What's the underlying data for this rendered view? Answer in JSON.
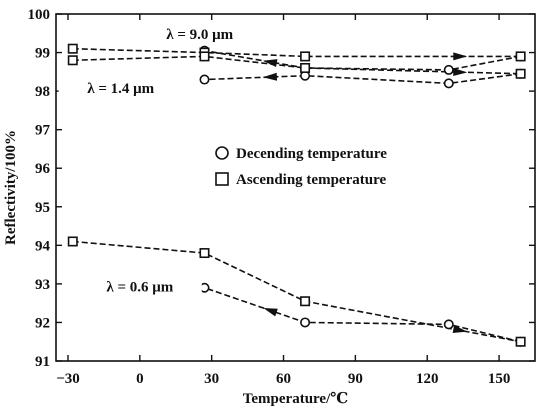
{
  "chart_data": {
    "type": "line",
    "xlabel": "Temperature/℃",
    "ylabel": "Reflectivity/100%",
    "xlim": [
      -35,
      165
    ],
    "ylim": [
      91,
      100
    ],
    "xticks": [
      -30,
      0,
      30,
      60,
      90,
      120,
      150
    ],
    "xtick_labels": [
      "−30",
      "0",
      "30",
      "60",
      "90",
      "120",
      "150"
    ],
    "yticks": [
      91,
      92,
      93,
      94,
      95,
      96,
      97,
      98,
      99,
      100
    ],
    "ytick_labels": [
      "91",
      "92",
      "93",
      "94",
      "95",
      "96",
      "97",
      "98",
      "99",
      "100"
    ],
    "legend": {
      "placement": "center-right",
      "entries": [
        {
          "marker": "circle",
          "label": "Decending temperature"
        },
        {
          "marker": "square",
          "label": "Ascending temperature"
        }
      ]
    },
    "annotations": [
      {
        "text": "λ = 9.0 μm",
        "x": 25,
        "y": 99.35
      },
      {
        "text": "λ = 1.4 μm",
        "x": -8,
        "y": 97.95
      },
      {
        "text": "λ = 0.6 μm",
        "x": 0,
        "y": 92.8
      }
    ],
    "series": [
      {
        "group": "9.0 μm",
        "marker": "circle",
        "x": [
          159,
          129,
          69,
          27
        ],
        "y": [
          98.9,
          98.55,
          98.6,
          99.05
        ]
      },
      {
        "group": "9.0 μm",
        "marker": "square",
        "x": [
          -28,
          27,
          69,
          159
        ],
        "y": [
          99.1,
          99.0,
          98.9,
          98.9
        ]
      },
      {
        "group": "1.4 μm",
        "marker": "circle",
        "x": [
          159,
          129,
          69,
          27
        ],
        "y": [
          98.45,
          98.2,
          98.4,
          98.3
        ]
      },
      {
        "group": "1.4 μm",
        "marker": "square",
        "x": [
          -28,
          27,
          69,
          159
        ],
        "y": [
          98.8,
          98.9,
          98.6,
          98.45
        ]
      },
      {
        "group": "0.6 μm",
        "marker": "circle",
        "x": [
          159,
          129,
          69,
          27
        ],
        "y": [
          91.5,
          91.95,
          92.0,
          92.9
        ]
      },
      {
        "group": "0.6 μm",
        "marker": "square",
        "x": [
          -28,
          27,
          69,
          159
        ],
        "y": [
          94.1,
          93.8,
          92.55,
          91.5
        ]
      }
    ]
  }
}
